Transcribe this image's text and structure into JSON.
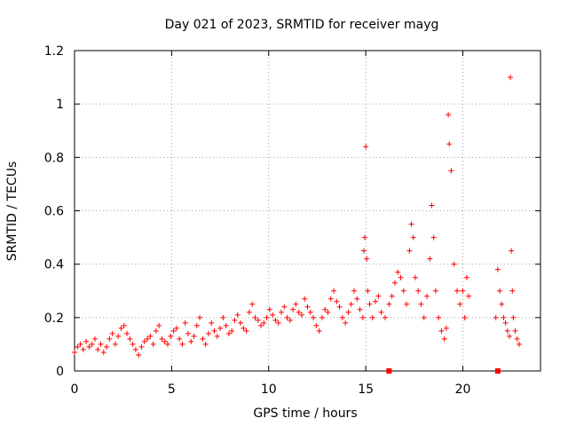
{
  "chart_data": {
    "type": "scatter",
    "title": "Day 021 of 2023, SRMTID for receiver mayg",
    "xlabel": "GPS time / hours",
    "ylabel": "SRMTID / TECUs",
    "xlim": [
      0,
      24
    ],
    "ylim": [
      0,
      1.2
    ],
    "grid": true,
    "x_ticks": [
      0,
      5,
      10,
      15,
      20
    ],
    "x_tick_labels": [
      "0",
      "5",
      "10",
      "15",
      "20"
    ],
    "y_ticks": [
      0,
      0.2,
      0.4,
      0.6,
      0.8,
      1.0,
      1.2
    ],
    "y_tick_labels": [
      "0",
      "0.2",
      "0.4",
      "0.6",
      "0.8",
      "1",
      "1.2"
    ],
    "marker": "+",
    "color": "#ff0000",
    "series": [
      {
        "name": "SRMTID",
        "x": [
          0.0,
          0.15,
          0.3,
          0.45,
          0.6,
          0.75,
          0.9,
          1.05,
          1.2,
          1.35,
          1.5,
          1.65,
          1.8,
          1.95,
          2.1,
          2.25,
          2.4,
          2.55,
          2.7,
          2.85,
          3.0,
          3.15,
          3.3,
          3.45,
          3.6,
          3.75,
          3.9,
          4.05,
          4.2,
          4.35,
          4.5,
          4.65,
          4.8,
          4.95,
          5.1,
          5.25,
          5.4,
          5.55,
          5.7,
          5.85,
          6.0,
          6.15,
          6.3,
          6.45,
          6.6,
          6.75,
          6.9,
          7.05,
          7.2,
          7.35,
          7.5,
          7.65,
          7.8,
          7.95,
          8.1,
          8.25,
          8.4,
          8.55,
          8.7,
          8.85,
          9.0,
          9.15,
          9.3,
          9.45,
          9.6,
          9.75,
          9.9,
          10.05,
          10.2,
          10.35,
          10.5,
          10.65,
          10.8,
          10.95,
          11.1,
          11.25,
          11.4,
          11.55,
          11.7,
          11.85,
          12.0,
          12.15,
          12.3,
          12.45,
          12.6,
          12.75,
          12.9,
          13.05,
          13.2,
          13.35,
          13.5,
          13.65,
          13.8,
          13.95,
          14.1,
          14.25,
          14.4,
          14.55,
          14.7,
          14.85,
          14.9,
          14.95,
          15.0,
          15.05,
          15.1,
          15.2,
          15.35,
          15.5,
          15.65,
          15.8,
          16.0,
          16.2,
          16.35,
          16.5,
          16.65,
          16.8,
          16.95,
          17.1,
          17.25,
          17.35,
          17.45,
          17.55,
          17.7,
          17.85,
          18.0,
          18.15,
          18.3,
          18.4,
          18.5,
          18.6,
          18.75,
          18.9,
          19.05,
          19.15,
          19.25,
          19.3,
          19.4,
          19.55,
          19.7,
          19.85,
          20.0,
          20.1,
          20.2,
          20.3,
          21.7,
          21.8,
          21.9,
          22.0,
          22.1,
          22.2,
          22.3,
          22.4,
          22.45,
          22.5,
          22.55,
          22.6,
          22.7,
          22.8,
          22.9
        ],
        "y": [
          0.07,
          0.09,
          0.1,
          0.08,
          0.11,
          0.09,
          0.1,
          0.12,
          0.08,
          0.1,
          0.07,
          0.09,
          0.12,
          0.14,
          0.1,
          0.13,
          0.16,
          0.17,
          0.14,
          0.12,
          0.1,
          0.08,
          0.06,
          0.09,
          0.11,
          0.12,
          0.13,
          0.1,
          0.15,
          0.17,
          0.12,
          0.11,
          0.1,
          0.13,
          0.15,
          0.16,
          0.12,
          0.1,
          0.18,
          0.14,
          0.11,
          0.13,
          0.17,
          0.2,
          0.12,
          0.1,
          0.14,
          0.18,
          0.15,
          0.13,
          0.16,
          0.2,
          0.17,
          0.14,
          0.15,
          0.19,
          0.21,
          0.18,
          0.16,
          0.15,
          0.22,
          0.25,
          0.2,
          0.19,
          0.17,
          0.18,
          0.2,
          0.23,
          0.21,
          0.19,
          0.18,
          0.22,
          0.24,
          0.2,
          0.19,
          0.23,
          0.25,
          0.22,
          0.21,
          0.27,
          0.24,
          0.22,
          0.2,
          0.17,
          0.15,
          0.2,
          0.23,
          0.22,
          0.27,
          0.3,
          0.26,
          0.24,
          0.2,
          0.18,
          0.22,
          0.25,
          0.3,
          0.27,
          0.23,
          0.2,
          0.45,
          0.5,
          0.84,
          0.42,
          0.3,
          0.25,
          0.2,
          0.26,
          0.28,
          0.22,
          0.2,
          0.25,
          0.28,
          0.33,
          0.37,
          0.35,
          0.3,
          0.25,
          0.45,
          0.55,
          0.5,
          0.35,
          0.3,
          0.25,
          0.2,
          0.28,
          0.42,
          0.62,
          0.5,
          0.3,
          0.2,
          0.15,
          0.12,
          0.16,
          0.96,
          0.85,
          0.75,
          0.4,
          0.3,
          0.25,
          0.3,
          0.2,
          0.35,
          0.28,
          0.2,
          0.38,
          0.3,
          0.25,
          0.2,
          0.18,
          0.15,
          0.13,
          1.1,
          0.45,
          0.3,
          0.2,
          0.15,
          0.12,
          0.1
        ],
        "baseline_x": [
          16.2,
          21.8
        ],
        "baseline_y": [
          0,
          0
        ]
      }
    ]
  }
}
